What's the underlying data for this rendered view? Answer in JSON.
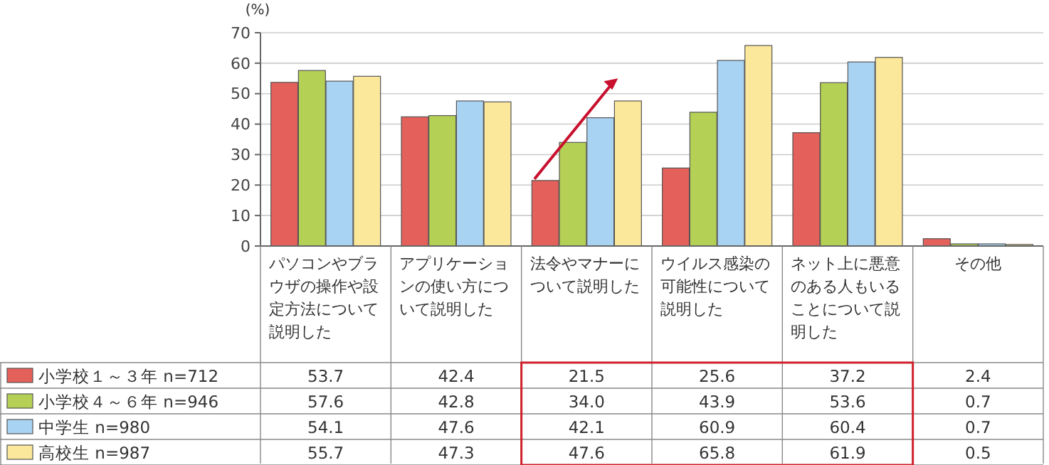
{
  "chart_data": {
    "type": "bar",
    "ylabel": "(%)",
    "categories": [
      "パソコンやブラウザの操作や設定方法について説明した",
      "アプリケーションの使い方について説明した",
      "法令やマナーについて説明した",
      "ウイルス感染の可能性について説明した",
      "ネット上に悪意のある人もいることについて説明した",
      "その他"
    ],
    "series": [
      {
        "name": "小学校１～３年 n=712",
        "color": "#e4605a",
        "values": [
          53.7,
          42.4,
          21.5,
          25.6,
          37.2,
          2.4
        ],
        "value_labels": [
          "53.7",
          "42.4",
          "21.5",
          "25.6",
          "37.2",
          "2.4"
        ]
      },
      {
        "name": "小学校４～６年 n=946",
        "color": "#b5d155",
        "values": [
          57.6,
          42.8,
          34.0,
          43.9,
          53.6,
          0.7
        ],
        "value_labels": [
          "57.6",
          "42.8",
          "34.0",
          "43.9",
          "53.6",
          "0.7"
        ]
      },
      {
        "name": "中学生 n=980",
        "color": "#a9d3f3",
        "values": [
          54.1,
          47.6,
          42.1,
          60.9,
          60.4,
          0.7
        ],
        "value_labels": [
          "54.1",
          "47.6",
          "42.1",
          "60.9",
          "60.4",
          "0.7"
        ]
      },
      {
        "name": "高校生 n=987",
        "color": "#fbe89a",
        "values": [
          55.7,
          47.3,
          47.6,
          65.8,
          61.9,
          0.5
        ],
        "value_labels": [
          "55.7",
          "47.3",
          "47.6",
          "65.8",
          "61.9",
          "0.5"
        ]
      }
    ],
    "ylim": [
      0,
      70
    ],
    "yticks": [
      0,
      10,
      20,
      30,
      40,
      50,
      60,
      70
    ],
    "grid": "y",
    "legend": "bottom left"
  }
}
